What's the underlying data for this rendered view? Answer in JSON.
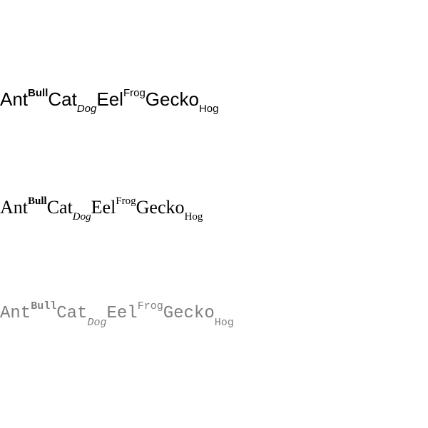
{
  "colors": {
    "background": "#ffffff",
    "sans_text": "#000000",
    "serif_text": "#000000",
    "mono_text": "#7f7f7f"
  },
  "lines": [
    {
      "name": "sans",
      "words": {
        "w1": "Ant",
        "w2": "Bull",
        "w3": "Cat",
        "w4": "Dog",
        "w5": "Eel",
        "w6": "Frog",
        "w7": "Gecko",
        "w8": "Hog"
      }
    },
    {
      "name": "serif",
      "words": {
        "w1": "Ant",
        "w2": "Bull",
        "w3": "Cat",
        "w4": "Dog",
        "w5": "Eel",
        "w6": "Frog",
        "w7": "Gecko",
        "w8": "Hog"
      }
    },
    {
      "name": "mono",
      "words": {
        "w1": "Ant",
        "w2": "Bull",
        "w3": "Cat",
        "w4": "Dog",
        "w5": "Eel",
        "w6": "Frog",
        "w7": "Gecko",
        "w8": "Hog"
      }
    }
  ]
}
